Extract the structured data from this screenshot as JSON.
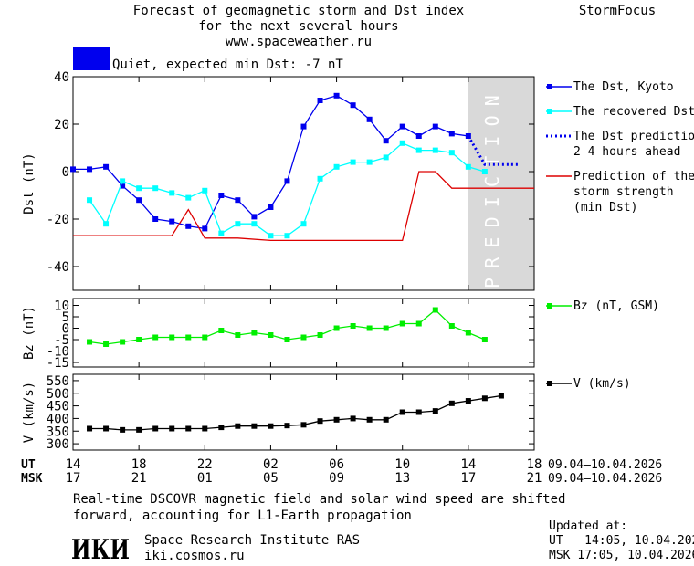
{
  "header": {
    "title_line1": "Forecast of geomagnetic storm and Dst index",
    "title_line2": "for the next several hours",
    "site": "www.spaceweather.ru",
    "brand": "StormFocus",
    "status_text": "Quiet, expected min Dst: -7 nT",
    "status_color": "#0000ee"
  },
  "prediction_label": "PREDICTION",
  "time_axis": {
    "ut_label": "UT",
    "msk_label": "MSK",
    "ut_ticks": [
      "14",
      "18",
      "22",
      "02",
      "06",
      "10",
      "14",
      "18"
    ],
    "msk_ticks": [
      "17",
      "21",
      "01",
      "05",
      "09",
      "13",
      "17",
      "21"
    ],
    "date_range_ut": "09.04–10.04.2026",
    "date_range_msk": "09.04–10.04.2026"
  },
  "footer": {
    "note_line1": "Real-time DSCOVR magnetic field and solar wind speed are shifted",
    "note_line2": "forward, accounting for L1-Earth propagation",
    "logo_text": "ИКИ",
    "institute": "Space Research Institute RAS",
    "institute_url": "iki.cosmos.ru",
    "updated_label": "Updated at:",
    "updated_ut": "UT   14:05, 10.04.2026",
    "updated_msk": "MSK 17:05, 10.04.2026"
  },
  "chart_data": [
    {
      "type": "line",
      "ylabel": "Dst (nT)",
      "ylim": [
        -50,
        40
      ],
      "yticks": [
        -40,
        -20,
        0,
        20,
        40
      ],
      "xlim": [
        0,
        28
      ],
      "prediction_band": [
        24,
        28
      ],
      "series": [
        {
          "name": "The Dst, Kyoto",
          "color": "#0000ee",
          "marker": "square",
          "x": [
            0,
            1,
            2,
            3,
            4,
            5,
            6,
            7,
            8,
            9,
            10,
            11,
            12,
            13,
            14,
            15,
            16,
            17,
            18,
            19,
            20,
            21,
            22,
            23,
            24
          ],
          "y": [
            1,
            1,
            2,
            -6,
            -12,
            -20,
            -21,
            -23,
            -24,
            -10,
            -12,
            -19,
            -15,
            -4,
            19,
            30,
            32,
            28,
            22,
            13,
            19,
            15,
            19,
            16,
            15
          ]
        },
        {
          "name": "The recovered Dst",
          "color": "#00ffff",
          "marker": "square",
          "x": [
            1,
            2,
            3,
            4,
            5,
            6,
            7,
            8,
            9,
            10,
            11,
            12,
            13,
            14,
            15,
            16,
            17,
            18,
            19,
            20,
            21,
            22,
            23,
            24,
            25
          ],
          "y": [
            -12,
            -22,
            -4,
            -7,
            -7,
            -9,
            -11,
            -8,
            -26,
            -22,
            -22,
            -27,
            -27,
            -22,
            -3,
            2,
            4,
            4,
            6,
            12,
            9,
            9,
            8,
            2,
            0
          ]
        },
        {
          "name": "The Dst prediction\n2–4 hours ahead",
          "color": "#0000ee",
          "style": "dotted",
          "x": [
            24,
            25,
            26,
            27
          ],
          "y": [
            15,
            3,
            3,
            3
          ]
        },
        {
          "name": "Prediction of the\nstorm strength\n(min Dst)",
          "color": "#dd0000",
          "style": "step",
          "x": [
            0,
            6,
            7,
            8,
            10,
            12,
            20,
            21,
            22,
            23,
            28
          ],
          "y": [
            -27,
            -27,
            -16,
            -28,
            -28,
            -29,
            -29,
            0,
            0,
            -7,
            -7
          ]
        }
      ]
    },
    {
      "type": "line",
      "ylabel": "Bz (nT)",
      "ylim": [
        -17,
        13
      ],
      "yticks": [
        -15,
        -10,
        -5,
        0,
        5,
        10
      ],
      "series": [
        {
          "name": "Bz (nT, GSM)",
          "color": "#00ee00",
          "marker": "square",
          "x": [
            1,
            2,
            3,
            4,
            5,
            6,
            7,
            8,
            9,
            10,
            11,
            12,
            13,
            14,
            15,
            16,
            17,
            18,
            19,
            20,
            21,
            22,
            23,
            24,
            25
          ],
          "y": [
            -6,
            -7,
            -6,
            -5,
            -4,
            -4,
            -4,
            -4,
            -1,
            -3,
            -2,
            -3,
            -5,
            -4,
            -3,
            0,
            1,
            0,
            0,
            2,
            2,
            8,
            1,
            -2,
            -5
          ]
        }
      ]
    },
    {
      "type": "line",
      "ylabel": "V (km/s)",
      "ylim": [
        275,
        575
      ],
      "yticks": [
        300,
        350,
        400,
        450,
        500,
        550
      ],
      "series": [
        {
          "name": "V (km/s)",
          "color": "#000000",
          "marker": "square",
          "x": [
            1,
            2,
            3,
            4,
            5,
            6,
            7,
            8,
            9,
            10,
            11,
            12,
            13,
            14,
            15,
            16,
            17,
            18,
            19,
            20,
            21,
            22,
            23,
            24,
            25,
            26
          ],
          "y": [
            360,
            360,
            355,
            355,
            360,
            360,
            360,
            360,
            365,
            370,
            370,
            370,
            372,
            375,
            390,
            395,
            400,
            395,
            395,
            425,
            425,
            430,
            460,
            470,
            480,
            490
          ]
        }
      ]
    }
  ]
}
